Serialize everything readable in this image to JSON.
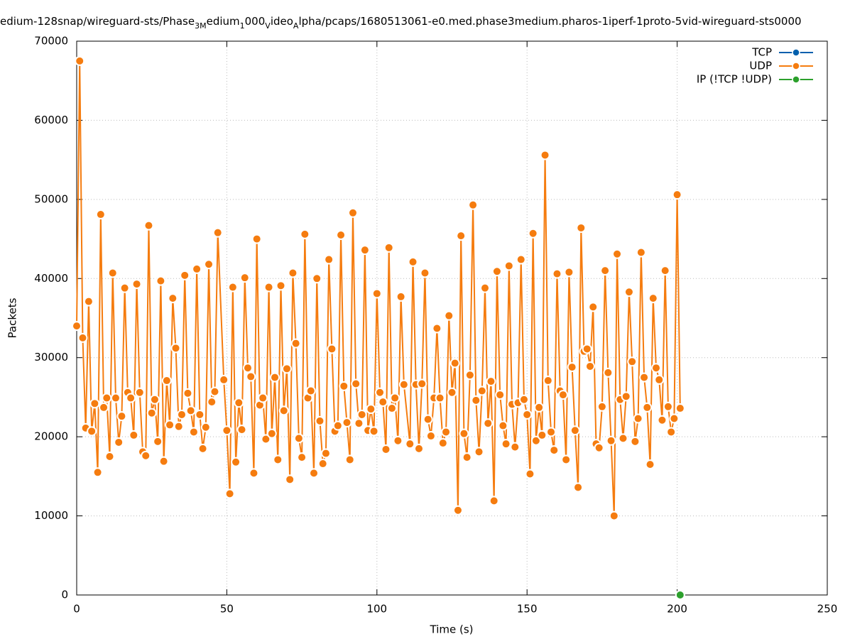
{
  "chart_data": {
    "type": "line",
    "title_parts": [
      {
        "text": "edium-128snap/wireguard-sts/Phase",
        "sub": false
      },
      {
        "text": "3M",
        "sub": true
      },
      {
        "text": "edium",
        "sub": false
      },
      {
        "text": "1",
        "sub": true
      },
      {
        "text": "000",
        "sub": false
      },
      {
        "text": "V",
        "sub": true
      },
      {
        "text": "ideo",
        "sub": false
      },
      {
        "text": "A",
        "sub": true
      },
      {
        "text": "lpha/pcaps/1680513061-e0.med.phase3medium.pharos-1iperf-1proto-5vid-wireguard-sts0000",
        "sub": false
      }
    ],
    "x_label": "Time (s)",
    "y_label": "Packets",
    "xlim": [
      0,
      250
    ],
    "xticks": [
      0,
      50,
      100,
      150,
      200,
      250
    ],
    "ylim": [
      0,
      70000
    ],
    "yticks": [
      0,
      10000,
      20000,
      30000,
      40000,
      50000,
      60000,
      70000
    ],
    "grid": true,
    "legend": "top-right",
    "series": [
      {
        "name": "TCP",
        "color": "#0060ad",
        "x": [],
        "values": []
      },
      {
        "name": "UDP",
        "color": "#f57c0f",
        "x": [
          0,
          1,
          2,
          3,
          4,
          5,
          6,
          7,
          8,
          9,
          10,
          11,
          12,
          13,
          14,
          15,
          16,
          17,
          18,
          19,
          20,
          21,
          22,
          23,
          24,
          25,
          26,
          27,
          28,
          29,
          30,
          31,
          32,
          33,
          34,
          35,
          36,
          37,
          38,
          39,
          40,
          41,
          42,
          43,
          44,
          45,
          46,
          47,
          49,
          50,
          51,
          52,
          53,
          54,
          55,
          56,
          57,
          58,
          59,
          60,
          61,
          62,
          63,
          64,
          65,
          66,
          67,
          68,
          69,
          70,
          71,
          72,
          73,
          74,
          75,
          76,
          77,
          78,
          79,
          80,
          81,
          82,
          83,
          84,
          85,
          86,
          87,
          88,
          89,
          90,
          91,
          92,
          93,
          94,
          95,
          96,
          97,
          98,
          99,
          100,
          101,
          102,
          103,
          104,
          105,
          106,
          107,
          108,
          109,
          111,
          112,
          113,
          114,
          115,
          116,
          117,
          118,
          119,
          120,
          121,
          122,
          123,
          124,
          125,
          126,
          127,
          128,
          129,
          130,
          131,
          132,
          133,
          134,
          135,
          136,
          137,
          138,
          139,
          140,
          141,
          142,
          143,
          144,
          145,
          146,
          147,
          148,
          149,
          150,
          151,
          152,
          153,
          154,
          155,
          156,
          157,
          158,
          159,
          160,
          161,
          162,
          163,
          164,
          165,
          166,
          167,
          168,
          169,
          170,
          171,
          172,
          173,
          174,
          175,
          176,
          177,
          178,
          179,
          180,
          181,
          182,
          183,
          184,
          185,
          186,
          187,
          188,
          189,
          190,
          191,
          192,
          193,
          194,
          195,
          196,
          197,
          198,
          199,
          200,
          201
        ],
        "values": [
          34000,
          67500,
          32500,
          21100,
          37100,
          20700,
          24200,
          15500,
          48100,
          23700,
          24900,
          17500,
          40700,
          24900,
          19300,
          22600,
          38800,
          25600,
          24900,
          20200,
          39300,
          25600,
          18100,
          17600,
          46700,
          23000,
          24700,
          19400,
          39700,
          16900,
          27100,
          21500,
          37500,
          31200,
          21300,
          22800,
          40400,
          25500,
          23300,
          20600,
          41200,
          22800,
          18500,
          21200,
          41800,
          24400,
          25700,
          45800,
          27200,
          20800,
          12800,
          38900,
          16800,
          24300,
          20900,
          40100,
          28700,
          27600,
          15400,
          45000,
          24000,
          24900,
          19700,
          38900,
          20400,
          27500,
          17100,
          39100,
          23300,
          28600,
          14600,
          40700,
          31800,
          19800,
          17400,
          45600,
          24900,
          25800,
          15400,
          40000,
          22000,
          16600,
          17900,
          42400,
          31100,
          20700,
          21400,
          45500,
          26400,
          21800,
          17100,
          48300,
          26700,
          21700,
          22800,
          43600,
          20800,
          23500,
          20700,
          38100,
          25600,
          24400,
          18400,
          43900,
          23600,
          24900,
          19500,
          37700,
          26600,
          19100,
          42100,
          26600,
          18500,
          26700,
          40700,
          22200,
          20100,
          24900,
          33700,
          24900,
          19200,
          20600,
          35300,
          25600,
          29300,
          10700,
          45400,
          20400,
          17400,
          27800,
          49300,
          24600,
          18100,
          25800,
          38800,
          21700,
          27000,
          11900,
          40900,
          25300,
          21400,
          19100,
          41600,
          24100,
          18700,
          24300,
          42400,
          24700,
          22800,
          15300,
          45700,
          19500,
          23700,
          20200,
          55600,
          27100,
          20600,
          18300,
          40600,
          25800,
          25300,
          17100,
          40800,
          28800,
          20800,
          13600,
          46400,
          30800,
          31100,
          28900,
          36400,
          19100,
          18600,
          23800,
          41000,
          28100,
          19500,
          10000,
          43100,
          24700,
          19800,
          25100,
          38300,
          29500,
          19400,
          22300,
          43300,
          27500,
          23700,
          16500,
          37500,
          28700,
          27200,
          22100,
          41000,
          23800,
          20600,
          22300,
          50600,
          23600
        ]
      },
      {
        "name": "IP (!TCP  !UDP)",
        "color": "#2ca02c",
        "x": [
          201
        ],
        "values": [
          0
        ]
      }
    ]
  }
}
